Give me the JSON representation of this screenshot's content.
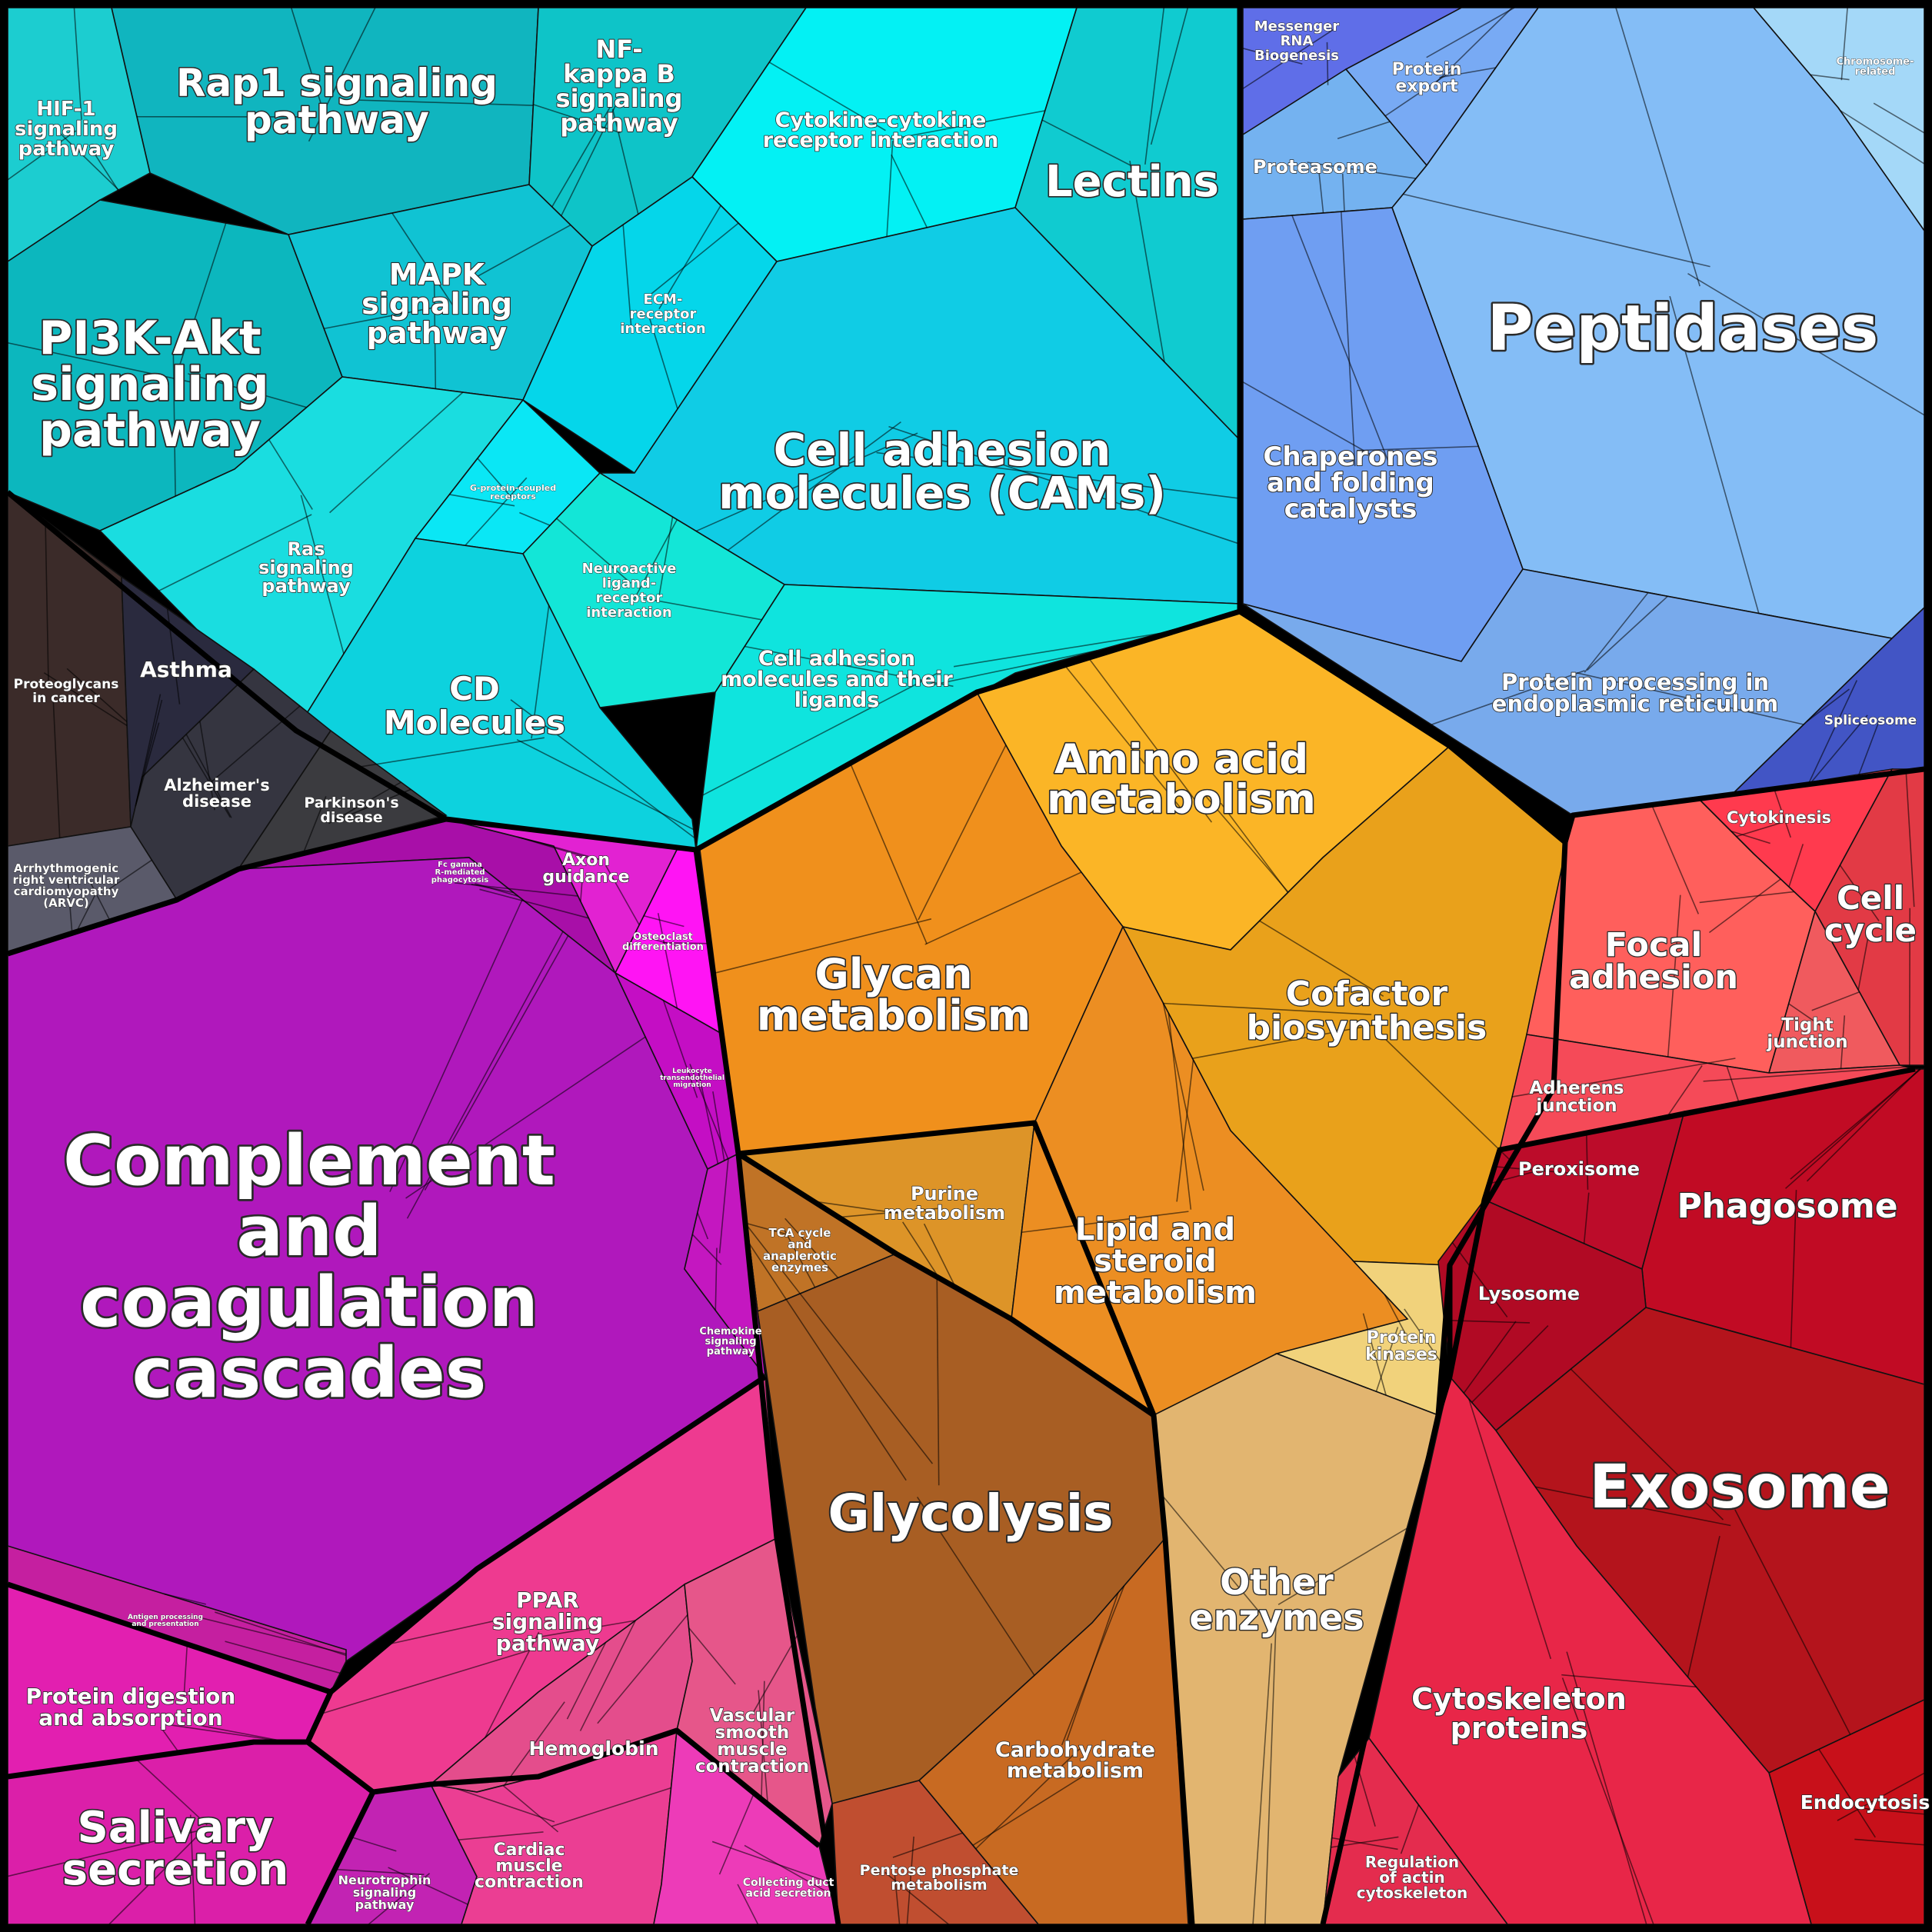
{
  "diagram": {
    "type": "proteomap-voronoi-treemap",
    "regions": [
      {
        "name": "signaling-cyan",
        "color": "#13c9d6",
        "cells": [
          {
            "label": "Rap1 signaling pathway",
            "color": "#10b5bf"
          },
          {
            "label": "HIF-1 signaling pathway",
            "color": "#1ccdd0"
          },
          {
            "label": "NF-kappa B signaling pathway",
            "color": "#0ec4c8"
          },
          {
            "label": "PI3K-Akt signaling pathway",
            "color": "#0cb7be"
          },
          {
            "label": "MAPK signaling pathway",
            "color": "#10c3d3"
          },
          {
            "label": "Ras signaling pathway",
            "color": "#1adde0"
          },
          {
            "label": "Cytokine-cytokine receptor interaction",
            "color": "#03f1f4"
          },
          {
            "label": "Lectins",
            "color": "#10cbd0"
          },
          {
            "label": "ECM-receptor interaction",
            "color": "#05d6ea"
          },
          {
            "label": "Cell adhesion molecules (CAMs)",
            "color": "#10cce5"
          },
          {
            "label": "G-protein-coupled receptors",
            "color": "#0ae7f5"
          },
          {
            "label": "Neuroactive ligand-receptor interaction",
            "color": "#13e6d7"
          },
          {
            "label": "CD Molecules",
            "color": "#0dd2de"
          },
          {
            "label": "Cell adhesion molecules and their ligands",
            "color": "#0fe4de"
          }
        ]
      },
      {
        "name": "disease-dark",
        "color": "#3a3a3a",
        "cells": [
          {
            "label": "Proteoglycans in cancer",
            "color": "#3b2b29"
          },
          {
            "label": "Asthma",
            "color": "#2a2a3e"
          },
          {
            "label": "Alzheimer's disease",
            "color": "#353540"
          },
          {
            "label": "Parkinson's disease",
            "color": "#3b3b3f"
          },
          {
            "label": "Arrhythmogenic right ventricular cardiomyopathy (ARVC)",
            "color": "#5a5a6a"
          }
        ]
      },
      {
        "name": "protein-blue",
        "color": "#80b4f6",
        "cells": [
          {
            "label": "Messenger RNA Biogenesis",
            "color": "#5f6ee8"
          },
          {
            "label": "Protein export",
            "color": "#78aaf4"
          },
          {
            "label": "Chromosome-related",
            "color": "#a4d8f8"
          },
          {
            "label": "Proteasome",
            "color": "#74b2f0"
          },
          {
            "label": "Peptidases",
            "color": "#84bdf6"
          },
          {
            "label": "Chaperones and folding catalysts",
            "color": "#6f9ef2"
          },
          {
            "label": "Protein processing in endoplasmic reticulum",
            "color": "#78aaec"
          },
          {
            "label": "Spliceosome",
            "color": "#4255c5"
          }
        ]
      },
      {
        "name": "metabolism-orange",
        "color": "#f2a421",
        "cells": [
          {
            "label": "Amino acid metabolism",
            "color": "#fbb526"
          },
          {
            "label": "Glycan metabolism",
            "color": "#f0901c"
          },
          {
            "label": "Cofactor biosynthesis",
            "color": "#e9a11b"
          },
          {
            "label": "Purine metabolism",
            "color": "#dd9428"
          },
          {
            "label": "Lipid and steroid metabolism",
            "color": "#ec8e22"
          },
          {
            "label": "Protein kinases",
            "color": "#f1d27b"
          }
        ]
      },
      {
        "name": "glycolysis-brown",
        "color": "#a85c24",
        "cells": [
          {
            "label": "TCA cycle and anaplerotic enzymes",
            "color": "#c07326"
          },
          {
            "label": "Glycolysis",
            "color": "#a85e23"
          },
          {
            "label": "Carbohydrate metabolism",
            "color": "#c86a22"
          },
          {
            "label": "Pentose phosphate metabolism",
            "color": "#c04e30"
          }
        ]
      },
      {
        "name": "enzymes-tan",
        "color": "#e2b570",
        "cells": [
          {
            "label": "Other enzymes",
            "color": "#e2b570"
          }
        ]
      },
      {
        "name": "complement-purple",
        "color": "#b519be",
        "cells": [
          {
            "label": "Fc gamma R-mediated phagocytosis",
            "color": "#a80fa8"
          },
          {
            "label": "Axon guidance",
            "color": "#e222d2"
          },
          {
            "label": "Osteoclast differentiation",
            "color": "#ff14f4"
          },
          {
            "label": "Complement and coagulation cascades",
            "color": "#b018bc"
          },
          {
            "label": "Leukocyte transendothelial migration",
            "color": "#c40ec4"
          },
          {
            "label": "Chemokine signaling pathway",
            "color": "#c417c0"
          },
          {
            "label": "Antigen processing and presentation",
            "color": "#c51fa0"
          }
        ]
      },
      {
        "name": "pink",
        "color": "#ea3f90",
        "cells": [
          {
            "label": "Protein digestion and absorption",
            "color": "#e21fb0"
          },
          {
            "label": "Salivary secretion",
            "color": "#db1fa9"
          },
          {
            "label": "PPAR signaling pathway",
            "color": "#ee3a90"
          },
          {
            "label": "Hemoglobin",
            "color": "#e44d8c"
          },
          {
            "label": "Vascular smooth muscle contraction",
            "color": "#e6568a"
          },
          {
            "label": "Neurotrophin signaling pathway",
            "color": "#c223b3"
          },
          {
            "label": "Cardiac muscle contraction",
            "color": "#eb3e93"
          },
          {
            "label": "Collecting duct acid secretion",
            "color": "#ed3bb8"
          }
        ]
      },
      {
        "name": "red",
        "color": "#c8102a",
        "cells": [
          {
            "label": "Cytokinesis",
            "color": "#ff3a4e"
          },
          {
            "label": "Cell cycle",
            "color": "#e23a45"
          },
          {
            "label": "Focal adhesion",
            "color": "#ff5f5c"
          },
          {
            "label": "Tight junction",
            "color": "#f05a5e"
          },
          {
            "label": "Adherens junction",
            "color": "#f54a58"
          },
          {
            "label": "Peroxisome",
            "color": "#bc0c2a"
          },
          {
            "label": "Phagosome",
            "color": "#c10b24"
          },
          {
            "label": "Lysosome",
            "color": "#b10a24"
          },
          {
            "label": "Exosome",
            "color": "#b4141c"
          },
          {
            "label": "Endocytosis",
            "color": "#c8101a"
          },
          {
            "label": "Cytoskeleton proteins",
            "color": "#e82648"
          },
          {
            "label": "Regulation of actin cytoskeleton",
            "color": "#e42c4e"
          }
        ]
      }
    ]
  }
}
